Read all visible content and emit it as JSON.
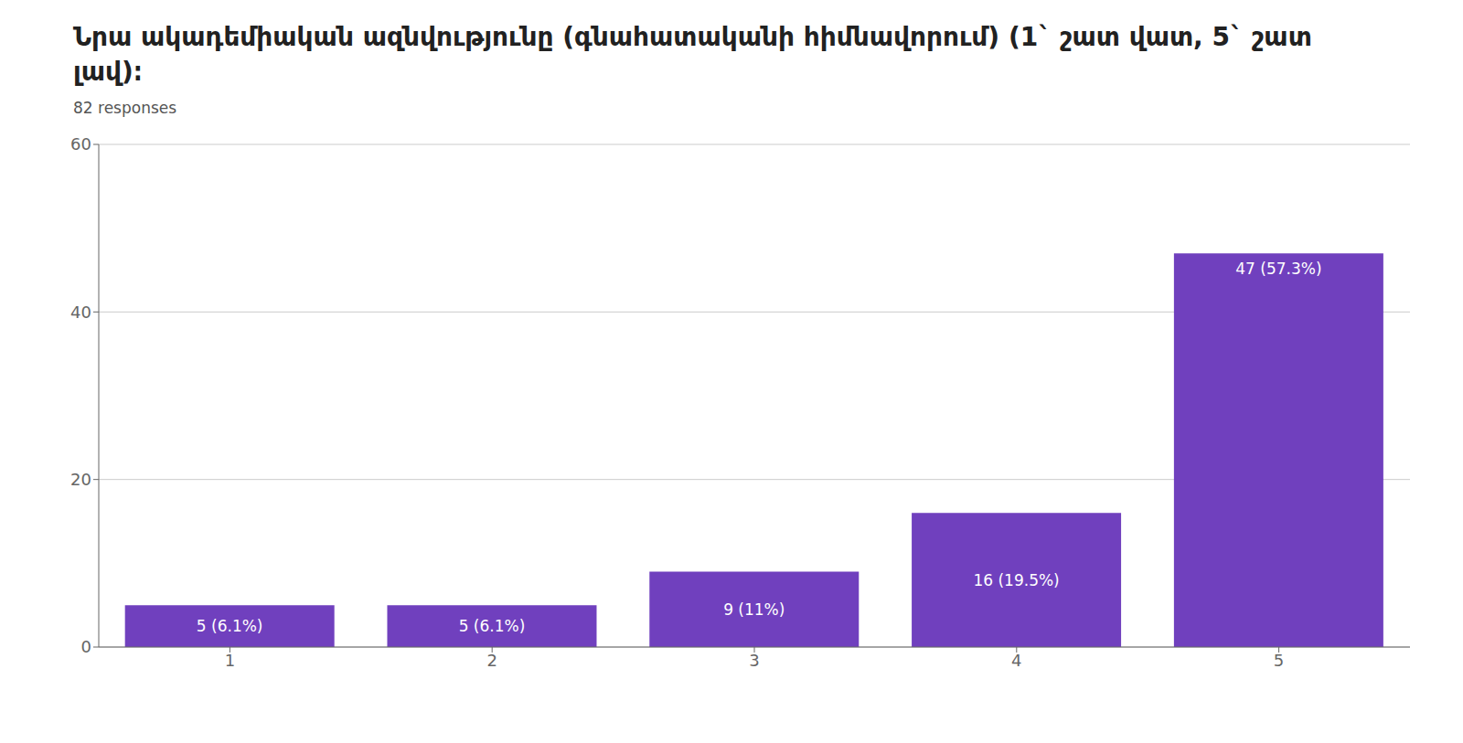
{
  "chart_data": {
    "type": "bar",
    "title": "Նրա ակադեմիական ազնվությունը (գնահատականի հիմնավորում)  (1` շատ վատ, 5` շատ\nլավ)։",
    "subtitle": "82 responses",
    "categories": [
      "1",
      "2",
      "3",
      "4",
      "5"
    ],
    "values": [
      5,
      5,
      9,
      16,
      47
    ],
    "value_labels": [
      "5 (6.1%)",
      "5 (6.1%)",
      "9 (11%)",
      "16 (19.5%)",
      "47 (57.3%)"
    ],
    "color": "#7040BE",
    "ylim": [
      0,
      60
    ],
    "yticks": [
      0,
      20,
      40,
      60
    ],
    "grid": true,
    "data_labels": true
  }
}
